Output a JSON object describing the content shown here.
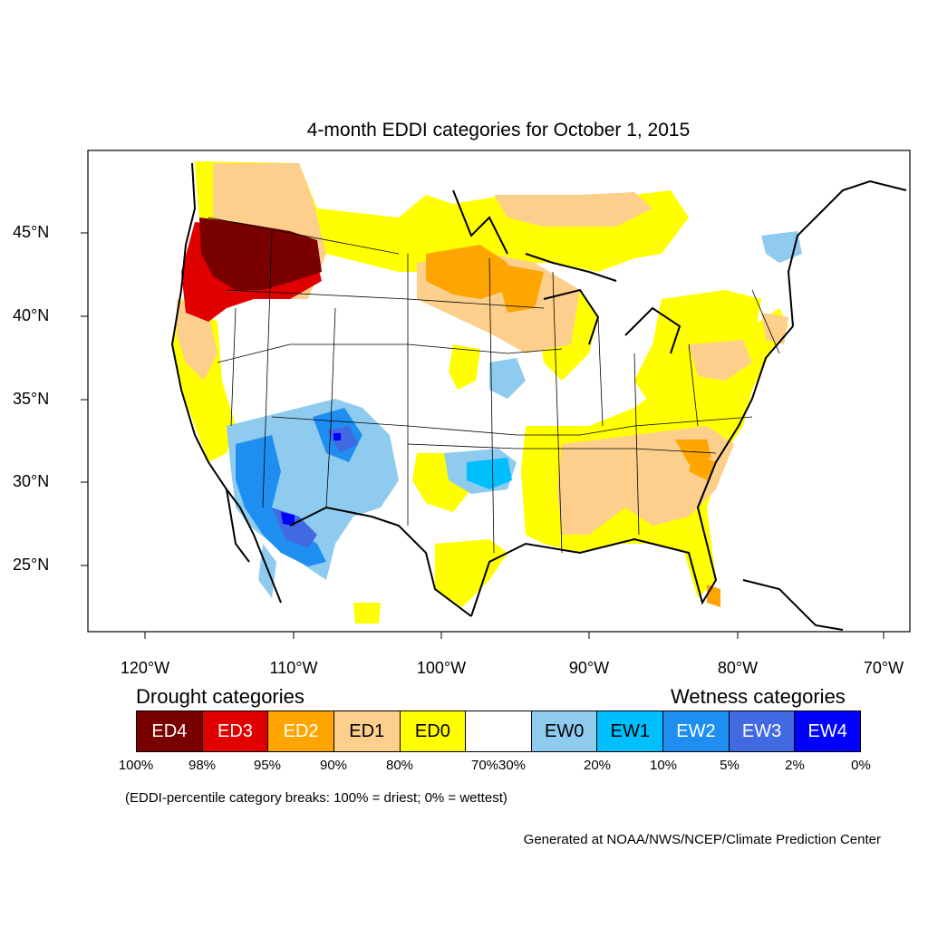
{
  "title": "4-month EDDI categories for October 1, 2015",
  "longitude_labels": [
    "120°W",
    "110°W",
    "100°W",
    "90°W",
    "80°W",
    "70°W"
  ],
  "latitude_labels": [
    "45°N",
    "40°N",
    "35°N",
    "30°N",
    "25°N"
  ],
  "legend": {
    "drought_heading": "Drought categories",
    "wetness_heading": "Wetness categories",
    "categories": [
      {
        "label": "ED4",
        "color": "#7a0000",
        "text_color": "#ffffff"
      },
      {
        "label": "ED3",
        "color": "#e00000",
        "text_color": "#ffffff"
      },
      {
        "label": "ED2",
        "color": "#ffa500",
        "text_color": "#ffffff"
      },
      {
        "label": "ED1",
        "color": "#fccf8c",
        "text_color": "#000000"
      },
      {
        "label": "ED0",
        "color": "#ffff00",
        "text_color": "#000000"
      },
      {
        "label": "",
        "color": "#ffffff",
        "text_color": "#000000"
      },
      {
        "label": "EW0",
        "color": "#8fcbee",
        "text_color": "#000000"
      },
      {
        "label": "EW1",
        "color": "#00bfff",
        "text_color": "#000000"
      },
      {
        "label": "EW2",
        "color": "#1e8ff0",
        "text_color": "#ffffff"
      },
      {
        "label": "EW3",
        "color": "#4169e1",
        "text_color": "#ffffff"
      },
      {
        "label": "EW4",
        "color": "#0000ff",
        "text_color": "#ffffff"
      }
    ],
    "tick_labels": [
      "100%",
      "98%",
      "95%",
      "90%",
      "80%",
      "70%",
      "30%",
      "20%",
      "10%",
      "5%",
      "2%",
      "0%"
    ]
  },
  "note": "(EDDI-percentile category breaks: 100% = driest; 0% = wettest)",
  "footer": "Generated at NOAA/NWS/NCEP/Climate Prediction Center"
}
